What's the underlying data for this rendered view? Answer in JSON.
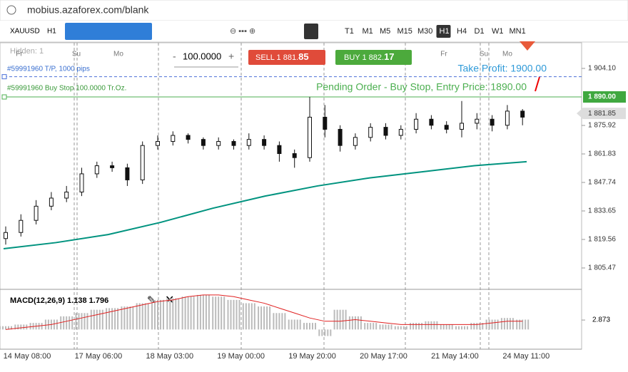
{
  "browser": {
    "url": "mobius.azaforex.com/blank"
  },
  "toolbar": {
    "symbol": "XAUUSD",
    "period": "H1",
    "timeframes": [
      "T1",
      "M1",
      "M5",
      "M15",
      "M30",
      "H1",
      "H4",
      "D1",
      "W1",
      "MN1"
    ],
    "active_timeframe": 5
  },
  "trade": {
    "sell_label": "SELL 1 881.",
    "sell_pips": "85",
    "buy_label": "BUY 1 882.",
    "buy_pips": "17",
    "lot": "100.0000"
  },
  "overlay": {
    "hidden": "Hidden: 1",
    "tp_order": "#59991960 T/P, 1000 pips",
    "stop_order": "#59991960 Buy Stop 100.0000 Tr.Oz.",
    "take_profit": "Take Profit: 1900.00",
    "pending": "Pending Order - Buy Stop, Entry Price: 1890.00",
    "entry_price_label": "1 890.00",
    "current_price_label": "1 881.85",
    "days": [
      "Fr",
      "Su",
      "Mo",
      "Fr",
      "Su",
      "Mo"
    ]
  },
  "chart_data": {
    "type": "candlestick",
    "ylim": [
      1795.26,
      1916.78
    ],
    "yticks": [
      {
        "value": 1904.1,
        "label": "1 904.10"
      },
      {
        "value": 1875.92,
        "label": "1 875.92"
      },
      {
        "value": 1861.83,
        "label": "1 861.83"
      },
      {
        "value": 1847.74,
        "label": "1 847.74"
      },
      {
        "value": 1833.65,
        "label": "1 833.65"
      },
      {
        "value": 1819.56,
        "label": "1 819.56"
      },
      {
        "value": 1805.47,
        "label": "1 805.47"
      }
    ],
    "take_profit": 1900.0,
    "entry_price": 1890.0,
    "current_price": 1881.85,
    "open": [
      1820,
      1823,
      1829,
      1836,
      1840,
      1843,
      1852,
      1856,
      1855,
      1849,
      1866,
      1868,
      1871,
      1869,
      1866,
      1868,
      1866,
      1869,
      1866,
      1862,
      1860,
      1880,
      1874,
      1866,
      1870,
      1875,
      1871,
      1874,
      1879,
      1876,
      1874,
      1877,
      1879,
      1876,
      1883
    ],
    "high": [
      1826,
      1832,
      1839,
      1843,
      1846,
      1855,
      1858,
      1858,
      1857,
      1868,
      1871,
      1873,
      1872,
      1870,
      1870,
      1869,
      1872,
      1871,
      1868,
      1864,
      1890,
      1886,
      1876,
      1872,
      1877,
      1877,
      1876,
      1882,
      1881,
      1878,
      1888,
      1882,
      1881,
      1886,
      1884
    ],
    "low": [
      1817,
      1821,
      1827,
      1834,
      1838,
      1841,
      1850,
      1853,
      1846,
      1847,
      1864,
      1866,
      1867,
      1864,
      1864,
      1864,
      1864,
      1864,
      1858,
      1855,
      1858,
      1870,
      1863,
      1864,
      1868,
      1869,
      1869,
      1872,
      1874,
      1872,
      1870,
      1874,
      1873,
      1874,
      1876
    ],
    "close": [
      1823,
      1829,
      1836,
      1840,
      1843,
      1852,
      1856,
      1855,
      1849,
      1866,
      1868,
      1871,
      1869,
      1866,
      1868,
      1866,
      1869,
      1866,
      1862,
      1860,
      1880,
      1874,
      1866,
      1870,
      1875,
      1871,
      1874,
      1879,
      1876,
      1874,
      1877,
      1879,
      1876,
      1883,
      1880
    ],
    "moving_average": {
      "color": "#00937f",
      "values": [
        1815,
        1818,
        1822,
        1828,
        1835,
        1841,
        1846,
        1850,
        1853,
        1856,
        1858
      ]
    },
    "x_labels": [
      "14 May 08:00",
      "17 May 06:00",
      "18 May 03:00",
      "19 May 00:00",
      "19 May 20:00",
      "20 May 17:00",
      "21 May 14:00",
      "24 May 11:00"
    ],
    "macd": {
      "title": "MACD(12,26,9) 1.138 1.796",
      "ylim": [
        -6,
        12
      ],
      "yticks": [
        2.873
      ],
      "histogram": [
        1,
        1.5,
        2,
        3,
        4,
        5,
        6,
        6.5,
        7,
        8,
        9,
        9.5,
        10,
        10.5,
        10,
        9,
        8,
        7,
        5,
        3,
        2,
        -2,
        6,
        4,
        2,
        1.5,
        1,
        2,
        2.5,
        1.5,
        1,
        2,
        3,
        3.5,
        3
      ],
      "signal": {
        "color": "#e02020",
        "values": [
          0,
          0.5,
          1,
          1.5,
          2.5,
          3.5,
          4.5,
          5.5,
          6.5,
          7.5,
          8.5,
          9,
          10,
          10.5,
          10.5,
          10,
          9,
          8,
          6.5,
          5,
          3.5,
          2.5,
          2.5,
          3,
          2.5,
          2,
          1.5,
          1.5,
          1.5,
          1.5,
          1.5,
          1.5,
          2,
          2.5,
          2.5
        ]
      }
    }
  }
}
